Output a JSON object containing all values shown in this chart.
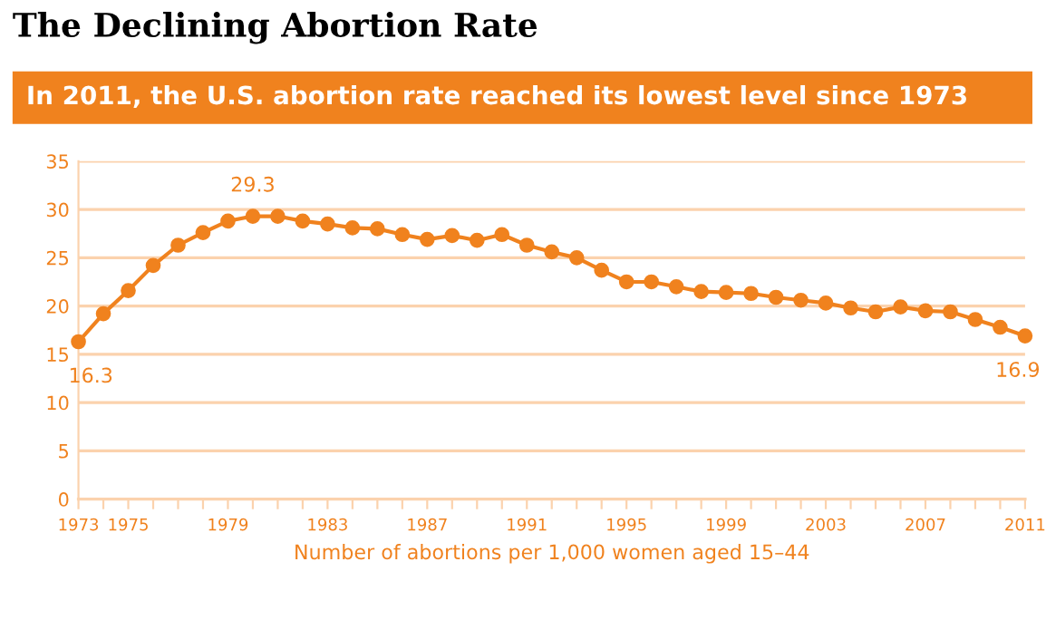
{
  "chart_data": {
    "type": "line",
    "title": "The Declining Abortion Rate",
    "subtitle": "In 2011, the U.S. abortion rate reached its lowest level since 1973",
    "xlabel": "Number of abortions per 1,000 women aged 15–44",
    "x": [
      1973,
      1974,
      1975,
      1976,
      1977,
      1978,
      1979,
      1980,
      1981,
      1982,
      1983,
      1984,
      1985,
      1986,
      1987,
      1988,
      1989,
      1990,
      1991,
      1992,
      1993,
      1994,
      1995,
      1996,
      1997,
      1998,
      1999,
      2000,
      2001,
      2002,
      2003,
      2004,
      2005,
      2006,
      2007,
      2008,
      2009,
      2010,
      2011
    ],
    "series": [
      {
        "color": "#f0821e",
        "values": [
          16.3,
          19.2,
          21.6,
          24.2,
          26.3,
          27.6,
          28.8,
          29.3,
          29.3,
          28.8,
          28.5,
          28.1,
          28.0,
          27.4,
          26.9,
          27.3,
          26.8,
          27.4,
          26.3,
          25.6,
          25.0,
          23.7,
          22.5,
          22.5,
          22.0,
          21.5,
          21.4,
          21.3,
          20.9,
          20.6,
          20.3,
          19.8,
          19.4,
          19.9,
          19.5,
          19.4,
          18.6,
          17.8,
          16.9
        ]
      }
    ],
    "annotations": [
      {
        "text": "16.3",
        "x": 1973,
        "y": 16.3
      },
      {
        "text": "29.3",
        "x": 1980,
        "y": 29.3
      },
      {
        "text": "16.9",
        "x": 2011,
        "y": 16.9
      }
    ],
    "xlim": [
      1973,
      2011
    ],
    "ylim": [
      0,
      35
    ],
    "xticks": [
      1973,
      {
        "value": 1974,
        "label": null
      },
      1975,
      {
        "value": 1976,
        "label": null
      },
      {
        "value": 1977,
        "label": null
      },
      {
        "value": 1978,
        "label": null
      },
      1979,
      {
        "value": 1980,
        "label": null
      },
      {
        "value": 1981,
        "label": null
      },
      {
        "value": 1982,
        "label": null
      },
      1983,
      {
        "value": 1984,
        "label": null
      },
      {
        "value": 1985,
        "label": null
      },
      {
        "value": 1986,
        "label": null
      },
      1987,
      {
        "value": 1988,
        "label": null
      },
      {
        "value": 1989,
        "label": null
      },
      {
        "value": 1990,
        "label": null
      },
      1991,
      {
        "value": 1992,
        "label": null
      },
      {
        "value": 1993,
        "label": null
      },
      {
        "value": 1994,
        "label": null
      },
      1995,
      {
        "value": 1996,
        "label": null
      },
      {
        "value": 1997,
        "label": null
      },
      {
        "value": 1998,
        "label": null
      },
      1999,
      {
        "value": 2000,
        "label": null
      },
      {
        "value": 2001,
        "label": null
      },
      {
        "value": 2002,
        "label": null
      },
      2003,
      {
        "value": 2004,
        "label": null
      },
      {
        "value": 2005,
        "label": null
      },
      {
        "value": 2006,
        "label": null
      },
      2007,
      {
        "value": 2008,
        "label": null
      },
      {
        "value": 2009,
        "label": null
      },
      {
        "value": 2010,
        "label": null
      },
      2011
    ],
    "yticks": [
      0,
      5,
      10,
      15,
      20,
      25,
      30,
      35
    ],
    "grid": "y",
    "marker": "circle",
    "line_style": "solid",
    "legend": false
  }
}
